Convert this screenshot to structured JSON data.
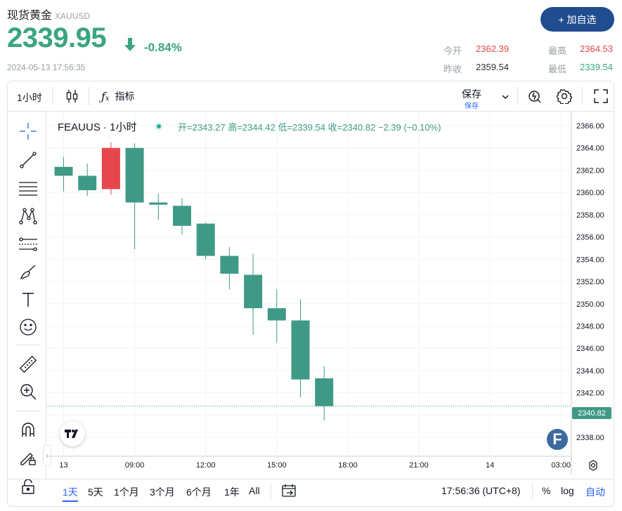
{
  "header": {
    "name": "现货黄金",
    "symbol": "XAUUSD",
    "price": "2339.95",
    "change_pct": "-0.84%",
    "timestamp": "2024-05-13 17:56:35",
    "add_watchlist": "+ 加自选",
    "stats": {
      "open_label": "今开",
      "open_value": "2362.39",
      "high_label": "最高",
      "high_value": "2364.53",
      "prev_close_label": "昨收",
      "prev_close_value": "2359.54",
      "low_label": "最低",
      "low_value": "2339.54"
    }
  },
  "toolbar": {
    "interval": "1小时",
    "indicators": "指标",
    "save_label": "保存",
    "save_sub": "保存"
  },
  "chart_header": {
    "symbol": "FEAUUS · 1小时",
    "open": "开=2343.27",
    "high": "高=2344.42",
    "low": "低=2339.54",
    "close": "收=2340.82",
    "change": "−2.39 (−0.10%)"
  },
  "current_price_label": "2340.82",
  "bottom": {
    "ranges": [
      "1天",
      "5天",
      "1个月",
      "3个月",
      "6个月",
      "1年",
      "All"
    ],
    "active_range": "1天",
    "time": "17:56:36 (UTC+8)",
    "pct": "%",
    "log": "log",
    "auto": "自动"
  },
  "colors": {
    "up": "#e5474d",
    "down": "#3f9a85",
    "price_green": "#3aa57e",
    "brand": "#1f4d8f"
  },
  "chart_data": {
    "type": "candlestick",
    "x_ticks": [
      "13",
      "09:00",
      "12:00",
      "15:00",
      "18:00",
      "21:00",
      "14",
      "03:00"
    ],
    "y_ticks": [
      "2366.00",
      "2364.00",
      "2362.00",
      "2360.00",
      "2358.00",
      "2356.00",
      "2354.00",
      "2352.00",
      "2350.00",
      "2348.00",
      "2346.00",
      "2344.00",
      "2342.00",
      "2340.00",
      "2338.00"
    ],
    "ylim": [
      2336.3,
      2367.2
    ],
    "candles": [
      {
        "o": 2362.3,
        "h": 2363.2,
        "l": 2360.1,
        "c": 2361.5
      },
      {
        "o": 2361.5,
        "h": 2362.6,
        "l": 2359.7,
        "c": 2360.2
      },
      {
        "o": 2360.3,
        "h": 2364.5,
        "l": 2359.8,
        "c": 2364.0
      },
      {
        "o": 2364.0,
        "h": 2364.4,
        "l": 2354.9,
        "c": 2359.1
      },
      {
        "o": 2359.1,
        "h": 2359.9,
        "l": 2357.5,
        "c": 2358.9
      },
      {
        "o": 2358.8,
        "h": 2359.5,
        "l": 2356.2,
        "c": 2357.0
      },
      {
        "o": 2357.2,
        "h": 2357.3,
        "l": 2354.0,
        "c": 2354.3
      },
      {
        "o": 2354.3,
        "h": 2355.1,
        "l": 2351.3,
        "c": 2352.7
      },
      {
        "o": 2352.6,
        "h": 2354.5,
        "l": 2347.2,
        "c": 2349.6
      },
      {
        "o": 2349.6,
        "h": 2351.3,
        "l": 2346.5,
        "c": 2348.5
      },
      {
        "o": 2348.5,
        "h": 2350.4,
        "l": 2341.6,
        "c": 2343.2
      },
      {
        "o": 2343.3,
        "h": 2344.4,
        "l": 2339.5,
        "c": 2340.8
      }
    ]
  }
}
